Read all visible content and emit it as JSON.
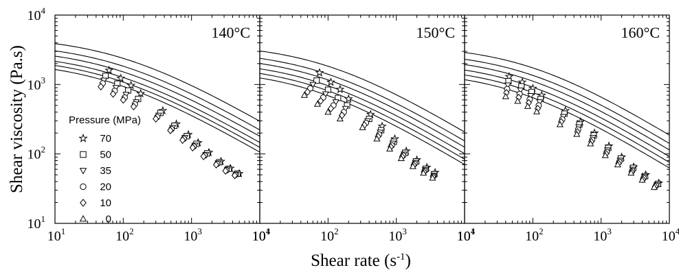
{
  "chart_data": {
    "type": "scatter",
    "ylabel": "Shear viscosity (Pa.s)",
    "xlabel": "Shear rate (s",
    "xlabel_exp": "-1",
    "xlabel_end": ")",
    "xscale": "log",
    "yscale": "log",
    "xlim": [
      10,
      10000
    ],
    "ylim": [
      10,
      10000
    ],
    "x_tick_base": "10",
    "x_tick_exps": [
      "1",
      "2",
      "3",
      "4"
    ],
    "y_tick_base": "10",
    "y_tick_exps": [
      "1",
      "2",
      "3",
      "4"
    ],
    "legend": {
      "title": "Pressure (MPa)",
      "placement": "left, inside first panel",
      "entries": [
        {
          "label": "70",
          "marker": "star"
        },
        {
          "label": "50",
          "marker": "square"
        },
        {
          "label": "35",
          "marker": "triangle-down"
        },
        {
          "label": "20",
          "marker": "circle"
        },
        {
          "label": "10",
          "marker": "diamond"
        },
        {
          "label": "0",
          "marker": "triangle-up"
        }
      ]
    },
    "panels": [
      {
        "title": "140°C",
        "fits": [
          {
            "eta0": 5000,
            "lambda": 0.0118,
            "n": 0.42
          },
          {
            "eta0": 4000,
            "lambda": 0.0133,
            "n": 0.42
          },
          {
            "eta0": 3400,
            "lambda": 0.0145,
            "n": 0.42
          },
          {
            "eta0": 2900,
            "lambda": 0.0158,
            "n": 0.42
          },
          {
            "eta0": 2550,
            "lambda": 0.0168,
            "n": 0.42
          },
          {
            "eta0": 2250,
            "lambda": 0.0178,
            "n": 0.42
          }
        ],
        "series": [
          {
            "name": "70",
            "x": [
              62,
              92,
              130,
              180,
              380,
              600,
              900,
              1250,
              1800,
              2700,
              3700,
              5000
            ],
            "y": [
              1600,
              1230,
              970,
              740,
              420,
              270,
              190,
              145,
              105,
              78,
              62,
              52
            ]
          },
          {
            "name": "50",
            "x": [
              55,
              82,
              118,
              165,
              350,
              560,
              850,
              1180,
              1700,
              2550,
              3500,
              4700
            ],
            "y": [
              1330,
              1030,
              820,
              620,
              390,
              255,
              180,
              140,
              102,
              76,
              61,
              52
            ]
          },
          {
            "name": "35",
            "x": [
              52,
              78,
              110,
              155,
              330,
              530,
              800,
              1120,
              1620,
              2450,
              3350,
              4500
            ],
            "y": [
              1150,
              900,
              720,
              560,
              360,
              240,
              172,
              133,
              98,
              74,
              60,
              51
            ]
          },
          {
            "name": "20",
            "x": [
              50,
              75,
              105,
              148,
              315,
              510,
              770,
              1080,
              1560,
              2380,
              3250,
              4400
            ],
            "y": [
              1040,
              810,
              650,
              520,
              340,
              228,
              165,
              128,
              95,
              72,
              58,
              50
            ]
          },
          {
            "name": "10",
            "x": [
              47,
              71,
              100,
              142,
              300,
              490,
              740,
              1040,
              1500,
              2300,
              3150,
              4300
            ],
            "y": [
              930,
              730,
              600,
              480,
              320,
              218,
              158,
              123,
              92,
              70,
              57,
              49
            ]
          }
        ]
      },
      {
        "title": "150°C",
        "fits": [
          {
            "eta0": 3900,
            "lambda": 0.0122,
            "n": 0.4
          },
          {
            "eta0": 3100,
            "lambda": 0.0137,
            "n": 0.4
          },
          {
            "eta0": 2650,
            "lambda": 0.015,
            "n": 0.4
          },
          {
            "eta0": 2250,
            "lambda": 0.0163,
            "n": 0.4
          },
          {
            "eta0": 1950,
            "lambda": 0.0176,
            "n": 0.4
          },
          {
            "eta0": 1700,
            "lambda": 0.0188,
            "n": 0.4
          }
        ],
        "series": [
          {
            "name": "70",
            "x": [
              75,
              110,
              150,
              200,
              420,
              620,
              950,
              1400,
              2000,
              2800,
              3700
            ],
            "y": [
              1480,
              1080,
              850,
              620,
              370,
              250,
              165,
              110,
              82,
              64,
              54
            ]
          },
          {
            "name": "50",
            "x": [
              68,
              100,
              140,
              190,
              400,
              600,
              920,
              1350,
              1950,
              2700,
              3600
            ],
            "y": [
              1140,
              840,
              640,
              500,
              320,
              220,
              150,
              104,
              78,
              61,
              51
            ]
          },
          {
            "name": "35",
            "x": [
              60,
              92,
              130,
              180,
              380,
              580,
              890,
              1300,
              1900,
              2650,
              3550
            ],
            "y": [
              1000,
              730,
              560,
              450,
              300,
              205,
              142,
              99,
              75,
              59,
              49
            ]
          },
          {
            "name": "20",
            "x": [
              55,
              85,
              120,
              170,
              360,
              560,
              860,
              1260,
              1850,
              2600,
              3500
            ],
            "y": [
              880,
              650,
              500,
              400,
              280,
              190,
              133,
              95,
              72,
              57,
              48
            ]
          },
          {
            "name": "10",
            "x": [
              50,
              78,
              110,
              160,
              340,
              540,
              830,
              1220,
              1800,
              2550,
              3450
            ],
            "y": [
              780,
              580,
              450,
              360,
              260,
              178,
              126,
              91,
              69,
              55,
              47
            ]
          },
          {
            "name": "0",
            "x": [
              45,
              70,
              100,
              150,
              320,
              520,
              800,
              1180,
              1750,
              2500,
              3400
            ],
            "y": [
              700,
              520,
              400,
              320,
              240,
              165,
              118,
              86,
              66,
              53,
              45
            ]
          }
        ]
      },
      {
        "title": "160°C",
        "fits": [
          {
            "eta0": 3700,
            "lambda": 0.0123,
            "n": 0.39
          },
          {
            "eta0": 3000,
            "lambda": 0.0138,
            "n": 0.39
          },
          {
            "eta0": 2550,
            "lambda": 0.0151,
            "n": 0.39
          },
          {
            "eta0": 2150,
            "lambda": 0.0164,
            "n": 0.39
          },
          {
            "eta0": 1850,
            "lambda": 0.0177,
            "n": 0.39
          },
          {
            "eta0": 1600,
            "lambda": 0.019,
            "n": 0.39
          }
        ],
        "series": [
          {
            "name": "70",
            "x": [
              45,
              70,
              100,
              135,
              300,
              500,
              800,
              1300,
              2000,
              3000,
              4500,
              7000
            ],
            "y": [
              1300,
              1080,
              880,
              700,
              420,
              290,
              200,
              130,
              90,
              65,
              50,
              38
            ]
          },
          {
            "name": "50",
            "x": [
              44,
              68,
              96,
              130,
              290,
              480,
              780,
              1270,
              1950,
              2950,
              4400,
              6800
            ],
            "y": [
              1120,
              940,
              780,
              620,
              380,
              265,
              185,
              122,
              86,
              63,
              48,
              37
            ]
          },
          {
            "name": "35",
            "x": [
              43,
              66,
              93,
              126,
              280,
              470,
              760,
              1240,
              1900,
              2900,
              4300,
              6600
            ],
            "y": [
              980,
              830,
              690,
              560,
              345,
              245,
              172,
              114,
              81,
              60,
              47,
              36
            ]
          },
          {
            "name": "20",
            "x": [
              42,
              64,
              90,
              122,
              270,
              460,
              740,
              1210,
              1850,
              2850,
              4200,
              6400
            ],
            "y": [
              860,
              730,
              610,
              500,
              315,
              225,
              160,
              107,
              77,
              57,
              45,
              35
            ]
          },
          {
            "name": "10",
            "x": [
              41,
              62,
              87,
              118,
              260,
              450,
              720,
              1180,
              1800,
              2800,
              4100,
              6200
            ],
            "y": [
              760,
              650,
              545,
              450,
              290,
              208,
              150,
              101,
              73,
              55,
              43,
              34
            ]
          },
          {
            "name": "0",
            "x": [
              40,
              60,
              84,
              114,
              250,
              440,
              700,
              1150,
              1750,
              2750,
              4000,
              6000
            ],
            "y": [
              670,
              575,
              485,
              405,
              265,
              192,
              140,
              95,
              70,
              53,
              42,
              33
            ]
          }
        ]
      }
    ]
  }
}
